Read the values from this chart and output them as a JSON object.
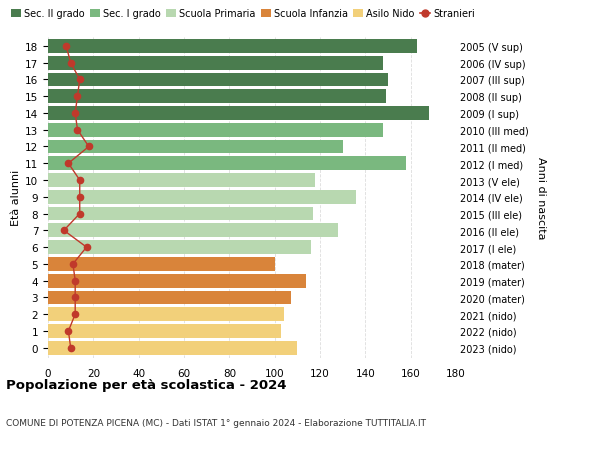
{
  "ages": [
    18,
    17,
    16,
    15,
    14,
    13,
    12,
    11,
    10,
    9,
    8,
    7,
    6,
    5,
    4,
    3,
    2,
    1,
    0
  ],
  "right_labels": [
    "2005 (V sup)",
    "2006 (IV sup)",
    "2007 (III sup)",
    "2008 (II sup)",
    "2009 (I sup)",
    "2010 (III med)",
    "2011 (II med)",
    "2012 (I med)",
    "2013 (V ele)",
    "2014 (IV ele)",
    "2015 (III ele)",
    "2016 (II ele)",
    "2017 (I ele)",
    "2018 (mater)",
    "2019 (mater)",
    "2020 (mater)",
    "2021 (nido)",
    "2022 (nido)",
    "2023 (nido)"
  ],
  "bar_values": [
    163,
    148,
    150,
    149,
    168,
    148,
    130,
    158,
    118,
    136,
    117,
    128,
    116,
    100,
    114,
    107,
    104,
    103,
    110
  ],
  "bar_colors": [
    "#4a7c4e",
    "#4a7c4e",
    "#4a7c4e",
    "#4a7c4e",
    "#4a7c4e",
    "#7ab87f",
    "#7ab87f",
    "#7ab87f",
    "#b8d8b0",
    "#b8d8b0",
    "#b8d8b0",
    "#b8d8b0",
    "#b8d8b0",
    "#d9843a",
    "#d9843a",
    "#d9843a",
    "#f2d07a",
    "#f2d07a",
    "#f2d07a"
  ],
  "stranieri_values": [
    8,
    10,
    14,
    13,
    12,
    13,
    18,
    9,
    14,
    14,
    14,
    7,
    17,
    11,
    12,
    12,
    12,
    9,
    10
  ],
  "title": "Popolazione per età scolastica - 2024",
  "subtitle": "COMUNE DI POTENZA PICENA (MC) - Dati ISTAT 1° gennaio 2024 - Elaborazione TUTTITALIA.IT",
  "ylabel_left": "Età alunni",
  "ylabel_right": "Anni di nascita",
  "xlim": [
    0,
    180
  ],
  "xticks": [
    0,
    20,
    40,
    60,
    80,
    100,
    120,
    140,
    160,
    180
  ],
  "legend_labels": [
    "Sec. II grado",
    "Sec. I grado",
    "Scuola Primaria",
    "Scuola Infanzia",
    "Asilo Nido",
    "Stranieri"
  ],
  "legend_colors": [
    "#4a7c4e",
    "#7ab87f",
    "#b8d8b0",
    "#d9843a",
    "#f2d07a",
    "#c0392b"
  ],
  "stranieri_color": "#c0392b",
  "bg_color": "#ffffff",
  "grid_color": "#dddddd",
  "bar_height": 0.82
}
